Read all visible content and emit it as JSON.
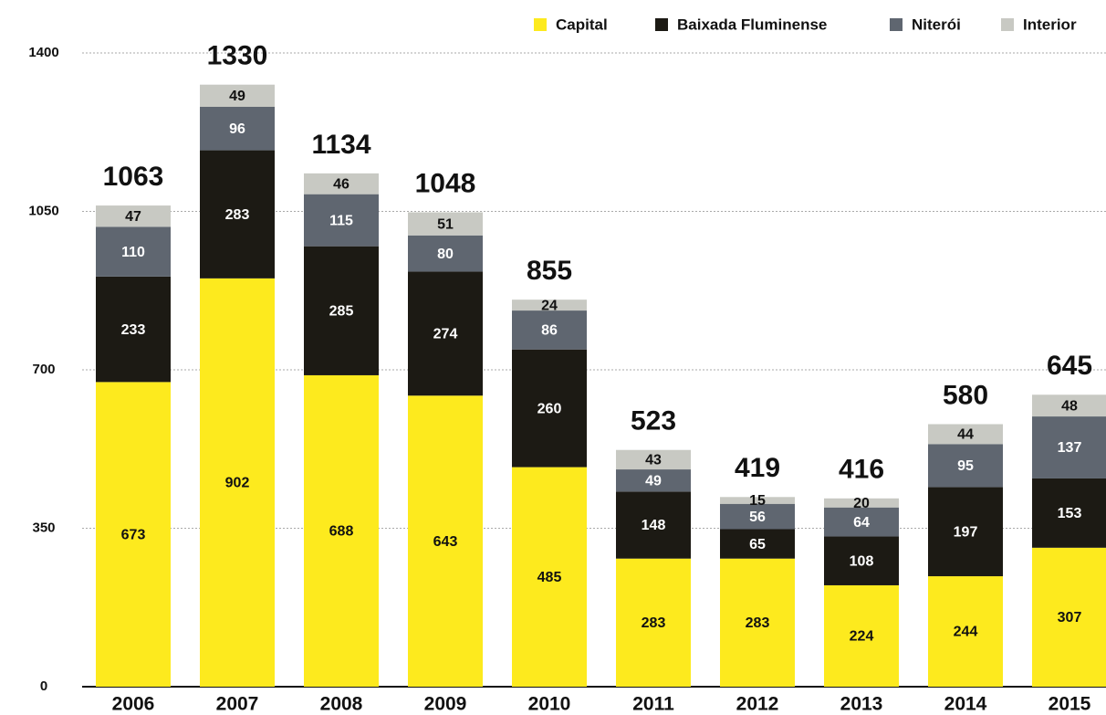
{
  "chart_data": {
    "type": "stacked_bar",
    "categories": [
      "2006",
      "2007",
      "2008",
      "2009",
      "2010",
      "2011",
      "2012",
      "2013",
      "2014",
      "2015"
    ],
    "series": [
      {
        "name": "Capital",
        "color": "#fdea1e",
        "values": [
          673,
          902,
          688,
          643,
          485,
          283,
          283,
          224,
          244,
          307
        ]
      },
      {
        "name": "Baixada Fluminense",
        "color": "#1c1a14",
        "values": [
          233,
          283,
          285,
          274,
          260,
          148,
          65,
          108,
          197,
          153
        ]
      },
      {
        "name": "Niterói",
        "color": "#5f6670",
        "values": [
          110,
          96,
          115,
          80,
          86,
          49,
          56,
          64,
          95,
          137
        ]
      },
      {
        "name": "Interior",
        "color": "#c8c9c3",
        "values": [
          47,
          49,
          46,
          51,
          24,
          43,
          15,
          20,
          44,
          48
        ]
      }
    ],
    "totals": [
      1063,
      1330,
      1134,
      1048,
      855,
      523,
      419,
      416,
      580,
      645
    ],
    "ylim": [
      0,
      1400
    ],
    "yticks": [
      0,
      350,
      700,
      1050,
      1400
    ],
    "grid": true
  }
}
